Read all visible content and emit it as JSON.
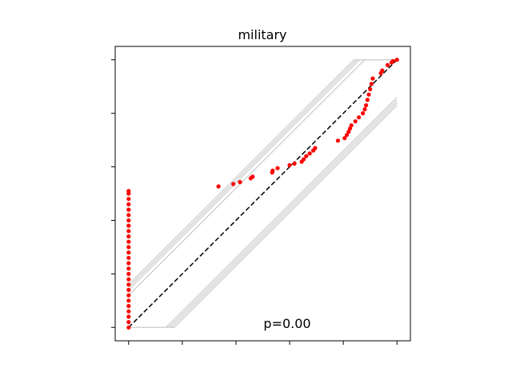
{
  "chart_data": {
    "type": "scatter",
    "title": "military",
    "annotation": "p=0.00",
    "xlabel": "",
    "ylabel": "",
    "xlim": [
      -0.05,
      1.05
    ],
    "ylim": [
      -0.05,
      1.05
    ],
    "x_ticks": [
      0,
      0.2,
      0.4,
      0.6,
      0.8,
      1.0
    ],
    "y_ticks": [
      0,
      0.2,
      0.4,
      0.6,
      0.8,
      1.0
    ],
    "tick_labels_visible": false,
    "grid": false,
    "reference_line": {
      "x": [
        0,
        1
      ],
      "y": [
        0,
        1
      ],
      "style": "dashed",
      "color": "#000000"
    },
    "band_lines": [
      {
        "x": [
          0.0,
          0.84,
          1.0
        ],
        "y": [
          0.16,
          1.0,
          1.0
        ]
      },
      {
        "x": [
          0.0,
          0.85,
          1.0
        ],
        "y": [
          0.15,
          1.0,
          1.0
        ]
      },
      {
        "x": [
          0.0,
          0.86,
          1.0
        ],
        "y": [
          0.14,
          1.0,
          1.0
        ]
      },
      {
        "x": [
          0.0,
          0.88,
          1.0
        ],
        "y": [
          0.12,
          1.0,
          1.0
        ]
      },
      {
        "x": [
          0.0,
          0.14,
          1.0
        ],
        "y": [
          0.0,
          0.0,
          0.86
        ]
      },
      {
        "x": [
          0.0,
          0.15,
          1.0
        ],
        "y": [
          0.0,
          0.0,
          0.85
        ]
      },
      {
        "x": [
          0.0,
          0.16,
          1.0
        ],
        "y": [
          0.0,
          0.0,
          0.84
        ]
      },
      {
        "x": [
          0.0,
          0.17,
          1.0
        ],
        "y": [
          0.0,
          0.0,
          0.83
        ]
      }
    ],
    "series": [
      {
        "color": "#ff0000",
        "points": [
          [
            0,
            0.0
          ],
          [
            0,
            0.02
          ],
          [
            0,
            0.04
          ],
          [
            0,
            0.06
          ],
          [
            0,
            0.08
          ],
          [
            0,
            0.1
          ],
          [
            0,
            0.12
          ],
          [
            0,
            0.14
          ],
          [
            0,
            0.16
          ],
          [
            0,
            0.18
          ],
          [
            0,
            0.2
          ],
          [
            0,
            0.22
          ],
          [
            0,
            0.24
          ],
          [
            0,
            0.26
          ],
          [
            0,
            0.28
          ],
          [
            0,
            0.3
          ],
          [
            0,
            0.32
          ],
          [
            0,
            0.34
          ],
          [
            0,
            0.36
          ],
          [
            0,
            0.38
          ],
          [
            0,
            0.4
          ],
          [
            0,
            0.42
          ],
          [
            0,
            0.44
          ],
          [
            0,
            0.46
          ],
          [
            0,
            0.48
          ],
          [
            0,
            0.5
          ],
          [
            0,
            0.51
          ],
          [
            0.335,
            0.527
          ],
          [
            0.39,
            0.536
          ],
          [
            0.415,
            0.543
          ],
          [
            0.455,
            0.557
          ],
          [
            0.462,
            0.563
          ],
          [
            0.535,
            0.579
          ],
          [
            0.537,
            0.586
          ],
          [
            0.555,
            0.595
          ],
          [
            0.6,
            0.606
          ],
          [
            0.618,
            0.612
          ],
          [
            0.645,
            0.619
          ],
          [
            0.652,
            0.628
          ],
          [
            0.662,
            0.64
          ],
          [
            0.675,
            0.65
          ],
          [
            0.688,
            0.661
          ],
          [
            0.695,
            0.67
          ],
          [
            0.78,
            0.698
          ],
          [
            0.805,
            0.707
          ],
          [
            0.813,
            0.719
          ],
          [
            0.82,
            0.731
          ],
          [
            0.825,
            0.743
          ],
          [
            0.83,
            0.755
          ],
          [
            0.845,
            0.77
          ],
          [
            0.858,
            0.785
          ],
          [
            0.873,
            0.8
          ],
          [
            0.88,
            0.815
          ],
          [
            0.885,
            0.83
          ],
          [
            0.89,
            0.85
          ],
          [
            0.895,
            0.87
          ],
          [
            0.9,
            0.89
          ],
          [
            0.905,
            0.91
          ],
          [
            0.91,
            0.93
          ],
          [
            0.94,
            0.95
          ],
          [
            0.945,
            0.96
          ],
          [
            0.965,
            0.98
          ],
          [
            0.98,
            0.99
          ],
          [
            0.985,
            0.995
          ],
          [
            1.0,
            1.0
          ]
        ]
      }
    ]
  }
}
